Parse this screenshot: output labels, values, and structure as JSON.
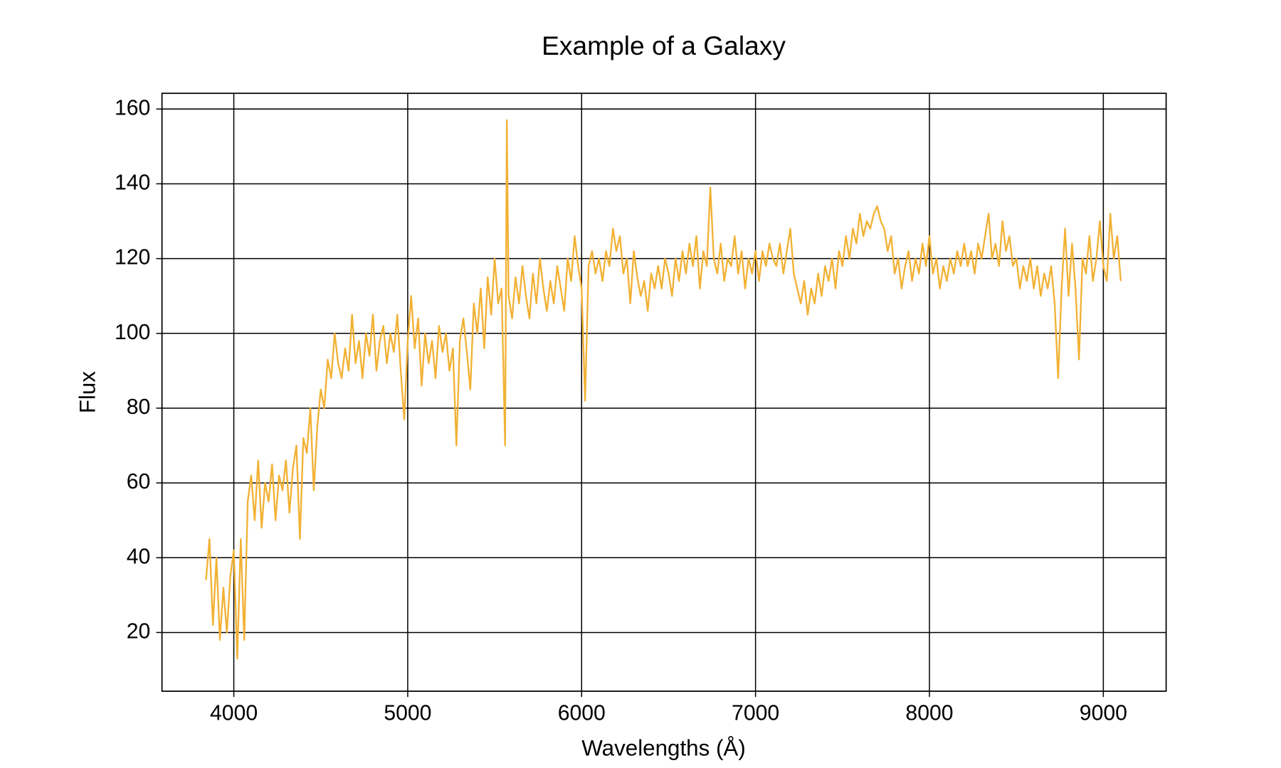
{
  "chart_data": {
    "type": "line",
    "title": "Example of a Galaxy",
    "x_label": "Wavelengths (Å)",
    "y_label": "Flux",
    "x": [
      3840,
      3860,
      3880,
      3900,
      3920,
      3940,
      3960,
      3980,
      4000,
      4020,
      4040,
      4060,
      4080,
      4100,
      4120,
      4140,
      4160,
      4180,
      4200,
      4220,
      4240,
      4260,
      4280,
      4300,
      4320,
      4340,
      4360,
      4380,
      4400,
      4420,
      4440,
      4460,
      4480,
      4500,
      4520,
      4540,
      4560,
      4580,
      4600,
      4620,
      4640,
      4660,
      4680,
      4700,
      4720,
      4740,
      4760,
      4780,
      4800,
      4820,
      4840,
      4860,
      4880,
      4900,
      4920,
      4940,
      4960,
      4980,
      5000,
      5020,
      5040,
      5060,
      5080,
      5100,
      5120,
      5140,
      5160,
      5180,
      5200,
      5220,
      5240,
      5260,
      5280,
      5300,
      5320,
      5340,
      5360,
      5380,
      5400,
      5420,
      5440,
      5460,
      5480,
      5500,
      5520,
      5540,
      5560,
      5570,
      5580,
      5600,
      5620,
      5640,
      5660,
      5680,
      5700,
      5720,
      5740,
      5760,
      5780,
      5800,
      5820,
      5840,
      5860,
      5880,
      5900,
      5920,
      5940,
      5960,
      5980,
      6000,
      6020,
      6040,
      6060,
      6080,
      6100,
      6120,
      6140,
      6160,
      6180,
      6200,
      6220,
      6240,
      6260,
      6280,
      6300,
      6320,
      6340,
      6360,
      6380,
      6400,
      6420,
      6440,
      6460,
      6480,
      6500,
      6520,
      6540,
      6560,
      6580,
      6600,
      6620,
      6640,
      6660,
      6680,
      6700,
      6720,
      6740,
      6760,
      6780,
      6800,
      6820,
      6840,
      6860,
      6880,
      6900,
      6920,
      6940,
      6960,
      6980,
      7000,
      7020,
      7040,
      7060,
      7080,
      7100,
      7120,
      7140,
      7160,
      7180,
      7200,
      7220,
      7240,
      7260,
      7280,
      7300,
      7320,
      7340,
      7360,
      7380,
      7400,
      7420,
      7440,
      7460,
      7480,
      7500,
      7520,
      7540,
      7560,
      7580,
      7600,
      7620,
      7640,
      7660,
      7680,
      7700,
      7720,
      7740,
      7760,
      7780,
      7800,
      7820,
      7840,
      7860,
      7880,
      7900,
      7920,
      7940,
      7960,
      7980,
      8000,
      8020,
      8040,
      8060,
      8080,
      8100,
      8120,
      8140,
      8160,
      8180,
      8200,
      8220,
      8240,
      8260,
      8280,
      8300,
      8320,
      8340,
      8360,
      8380,
      8400,
      8420,
      8440,
      8460,
      8480,
      8500,
      8520,
      8540,
      8560,
      8580,
      8600,
      8620,
      8640,
      8660,
      8680,
      8700,
      8720,
      8740,
      8760,
      8780,
      8800,
      8820,
      8840,
      8860,
      8880,
      8900,
      8920,
      8940,
      8960,
      8980,
      9000,
      9020,
      9040,
      9060,
      9080,
      9100
    ],
    "series": [
      {
        "name": "Flux",
        "color": "#f2b134",
        "values": [
          34,
          45,
          22,
          40,
          18,
          32,
          20,
          35,
          42,
          13,
          45,
          18,
          55,
          62,
          50,
          66,
          48,
          60,
          55,
          65,
          50,
          62,
          58,
          66,
          52,
          64,
          70,
          45,
          72,
          68,
          80,
          58,
          75,
          85,
          80,
          93,
          88,
          100,
          92,
          88,
          96,
          90,
          105,
          92,
          98,
          88,
          100,
          94,
          105,
          90,
          98,
          102,
          92,
          100,
          95,
          105,
          90,
          77,
          98,
          110,
          96,
          104,
          86,
          100,
          92,
          98,
          88,
          102,
          95,
          100,
          90,
          96,
          70,
          98,
          104,
          95,
          85,
          108,
          100,
          112,
          96,
          115,
          105,
          120,
          108,
          112,
          70,
          157,
          110,
          104,
          115,
          108,
          118,
          110,
          104,
          116,
          108,
          120,
          112,
          106,
          114,
          108,
          118,
          112,
          106,
          120,
          114,
          126,
          118,
          112,
          82,
          118,
          122,
          116,
          120,
          114,
          122,
          118,
          128,
          122,
          126,
          116,
          120,
          108,
          122,
          115,
          110,
          114,
          106,
          116,
          112,
          118,
          112,
          120,
          116,
          110,
          120,
          114,
          122,
          116,
          124,
          118,
          126,
          112,
          122,
          118,
          139,
          120,
          116,
          124,
          114,
          120,
          118,
          126,
          116,
          122,
          112,
          120,
          116,
          122,
          114,
          122,
          118,
          124,
          120,
          118,
          124,
          116,
          122,
          128,
          116,
          112,
          108,
          114,
          105,
          112,
          108,
          116,
          110,
          118,
          114,
          120,
          112,
          122,
          118,
          126,
          120,
          128,
          124,
          132,
          126,
          130,
          128,
          132,
          134,
          130,
          128,
          122,
          126,
          116,
          120,
          112,
          118,
          122,
          114,
          120,
          116,
          124,
          118,
          126,
          116,
          120,
          112,
          118,
          114,
          120,
          116,
          122,
          118,
          124,
          118,
          122,
          116,
          124,
          120,
          126,
          132,
          120,
          124,
          118,
          130,
          122,
          126,
          118,
          120,
          112,
          118,
          114,
          120,
          112,
          118,
          110,
          116,
          112,
          118,
          108,
          88,
          112,
          128,
          110,
          124,
          112,
          93,
          120,
          116,
          126,
          114,
          120,
          130,
          118,
          114,
          132,
          120,
          126,
          114
        ]
      }
    ],
    "xlim": [
      3587,
      9361
    ],
    "ylim": [
      4.3,
      164.2
    ],
    "xticks": [
      4000,
      5000,
      6000,
      7000,
      8000,
      9000
    ],
    "yticks": [
      20,
      40,
      60,
      80,
      100,
      120,
      140,
      160
    ],
    "grid": true
  }
}
